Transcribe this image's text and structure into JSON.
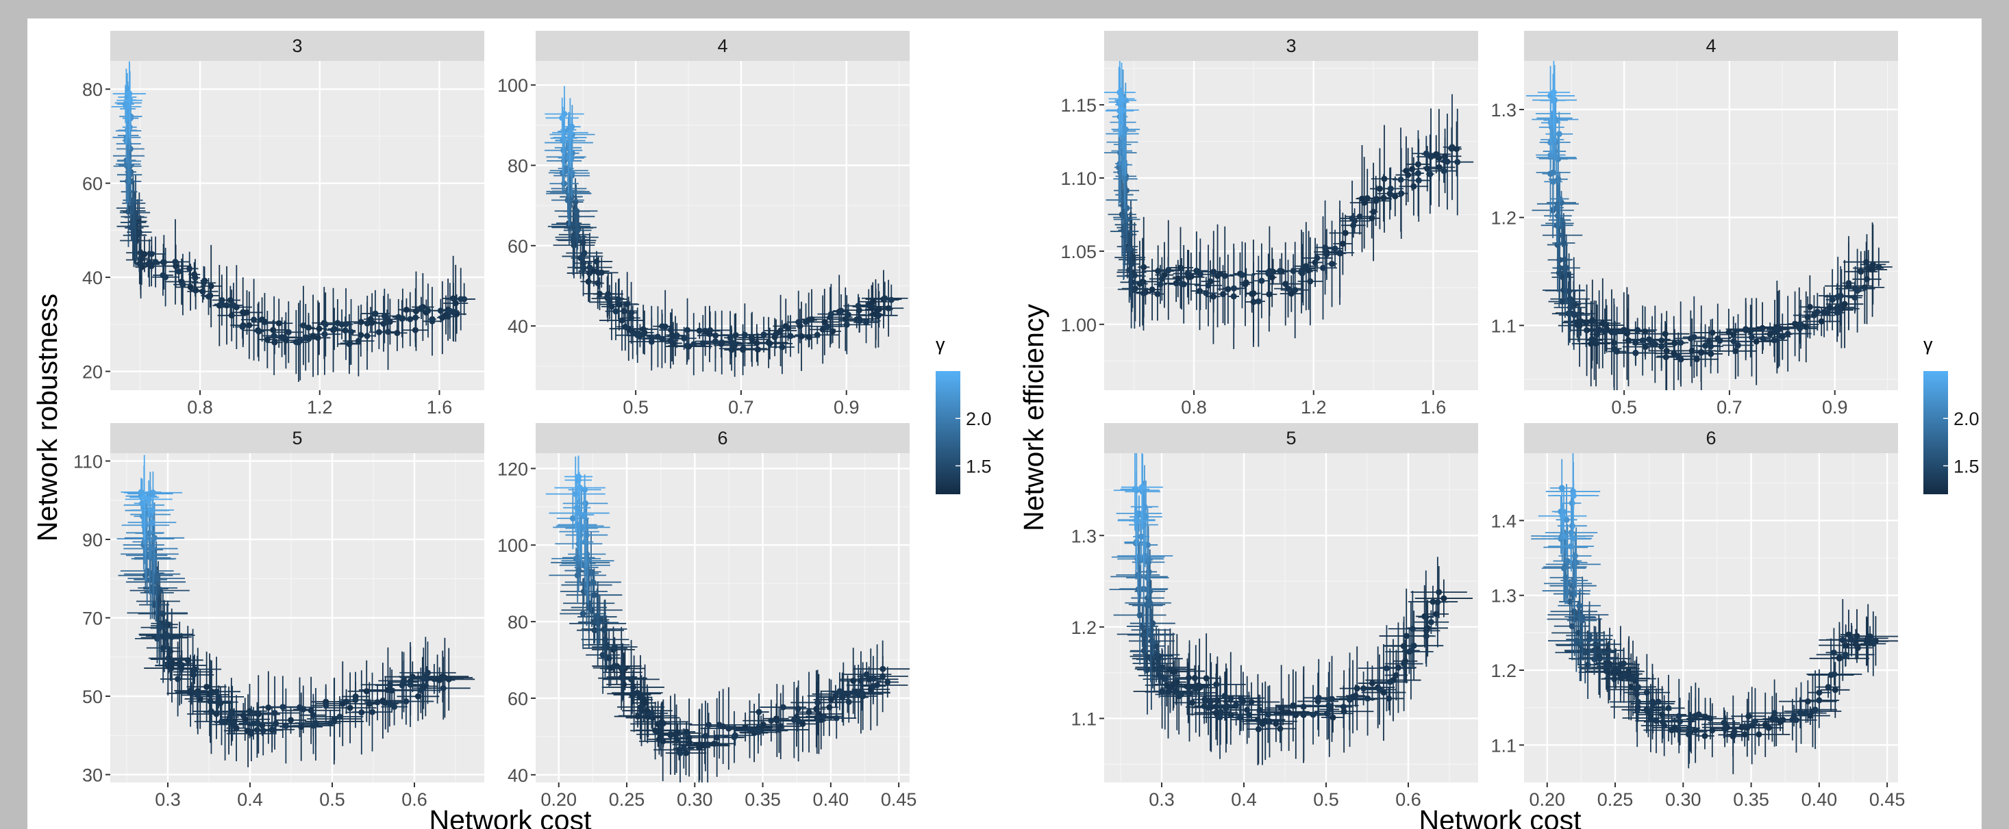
{
  "figure": {
    "left_panel": {
      "ylabel": "Network robustness",
      "xlabel": "Network cost"
    },
    "right_panel": {
      "ylabel": "Network efficiency",
      "xlabel": "Network cost"
    },
    "legend": {
      "title": "γ",
      "ticks": [
        "1.5",
        "2.0"
      ],
      "range": [
        1.2,
        2.5
      ],
      "low_color": "#132B43",
      "high_color": "#56B1F7"
    }
  },
  "chart_data": [
    {
      "type": "scatter",
      "facet": "3",
      "panel": "left",
      "xlabel": "Network cost",
      "ylabel": "Network robustness",
      "xlim": [
        0.5,
        1.75
      ],
      "ylim": [
        16,
        86
      ],
      "xticks": [
        0.8,
        1.2,
        1.6
      ],
      "yticks": [
        20,
        40,
        60,
        80
      ],
      "grid": true,
      "curve": [
        [
          0.56,
          80,
          2.4
        ],
        [
          0.56,
          72,
          2.2
        ],
        [
          0.56,
          64,
          1.9
        ],
        [
          0.57,
          56,
          1.6
        ],
        [
          0.58,
          50,
          1.4
        ],
        [
          0.6,
          43,
          1.3
        ],
        [
          0.7,
          42,
          1.3
        ],
        [
          0.8,
          39,
          1.3
        ],
        [
          0.9,
          33,
          1.3
        ],
        [
          1.0,
          29,
          1.3
        ],
        [
          1.1,
          28,
          1.3
        ],
        [
          1.2,
          28,
          1.3
        ],
        [
          1.3,
          28,
          1.3
        ],
        [
          1.4,
          30,
          1.3
        ],
        [
          1.5,
          31,
          1.3
        ],
        [
          1.6,
          33,
          1.3
        ],
        [
          1.68,
          34,
          1.3
        ]
      ],
      "spread": [
        0.012,
        2.5
      ]
    },
    {
      "type": "scatter",
      "facet": "4",
      "panel": "left",
      "xlabel": "Network cost",
      "ylabel": "Network robustness",
      "xlim": [
        0.31,
        1.02
      ],
      "ylim": [
        24,
        106
      ],
      "xticks": [
        0.5,
        0.7,
        0.9
      ],
      "yticks": [
        40,
        60,
        80,
        100
      ],
      "grid": true,
      "curve": [
        [
          0.37,
          92,
          2.4
        ],
        [
          0.37,
          84,
          2.2
        ],
        [
          0.37,
          76,
          1.9
        ],
        [
          0.38,
          68,
          1.6
        ],
        [
          0.39,
          60,
          1.4
        ],
        [
          0.42,
          53,
          1.3
        ],
        [
          0.47,
          44,
          1.3
        ],
        [
          0.52,
          39,
          1.3
        ],
        [
          0.58,
          37,
          1.3
        ],
        [
          0.65,
          37,
          1.3
        ],
        [
          0.72,
          36,
          1.3
        ],
        [
          0.8,
          38,
          1.3
        ],
        [
          0.87,
          41,
          1.3
        ],
        [
          0.93,
          43,
          1.3
        ],
        [
          0.98,
          45,
          1.3
        ]
      ],
      "spread": [
        0.01,
        2.5
      ]
    },
    {
      "type": "scatter",
      "facet": "5",
      "panel": "left",
      "xlabel": "Network cost",
      "ylabel": "Network robustness",
      "xlim": [
        0.23,
        0.685
      ],
      "ylim": [
        28,
        112
      ],
      "xticks": [
        0.3,
        0.4,
        0.5,
        0.6
      ],
      "yticks": [
        30,
        50,
        70,
        90,
        110
      ],
      "grid": true,
      "curve": [
        [
          0.275,
          103,
          2.4
        ],
        [
          0.275,
          95,
          2.2
        ],
        [
          0.278,
          86,
          1.9
        ],
        [
          0.282,
          78,
          1.6
        ],
        [
          0.29,
          68,
          1.4
        ],
        [
          0.305,
          60,
          1.3
        ],
        [
          0.33,
          54,
          1.3
        ],
        [
          0.36,
          48,
          1.3
        ],
        [
          0.38,
          43,
          1.3
        ],
        [
          0.42,
          44,
          1.3
        ],
        [
          0.47,
          45,
          1.3
        ],
        [
          0.52,
          47,
          1.3
        ],
        [
          0.57,
          50,
          1.3
        ],
        [
          0.61,
          53,
          1.3
        ],
        [
          0.64,
          55,
          1.3
        ]
      ],
      "spread": [
        0.008,
        3
      ]
    },
    {
      "type": "scatter",
      "facet": "6",
      "panel": "left",
      "xlabel": "Network cost",
      "ylabel": "Network robustness",
      "xlim": [
        0.183,
        0.458
      ],
      "ylim": [
        38,
        124
      ],
      "xticks": [
        0.2,
        0.25,
        0.3,
        0.35,
        0.4,
        0.45
      ],
      "yticks": [
        40,
        60,
        80,
        100,
        120
      ],
      "grid": true,
      "curve": [
        [
          0.215,
          115,
          2.4
        ],
        [
          0.215,
          105,
          2.2
        ],
        [
          0.218,
          95,
          1.9
        ],
        [
          0.222,
          85,
          1.6
        ],
        [
          0.232,
          75,
          1.4
        ],
        [
          0.245,
          68,
          1.3
        ],
        [
          0.258,
          60,
          1.3
        ],
        [
          0.27,
          52,
          1.3
        ],
        [
          0.285,
          48,
          1.3
        ],
        [
          0.31,
          50,
          1.3
        ],
        [
          0.34,
          53,
          1.3
        ],
        [
          0.37,
          55,
          1.3
        ],
        [
          0.4,
          57,
          1.3
        ],
        [
          0.42,
          63,
          1.3
        ],
        [
          0.44,
          66,
          1.3
        ]
      ],
      "spread": [
        0.005,
        3
      ]
    },
    {
      "type": "scatter",
      "facet": "3",
      "panel": "right",
      "xlabel": "Network cost",
      "ylabel": "Network efficiency",
      "xlim": [
        0.5,
        1.75
      ],
      "ylim": [
        0.955,
        1.18
      ],
      "xticks": [
        0.8,
        1.2,
        1.6
      ],
      "yticks": [
        1.0,
        1.05,
        1.1,
        1.15
      ],
      "grid": true,
      "curve": [
        [
          0.56,
          1.16,
          2.4
        ],
        [
          0.56,
          1.13,
          2.2
        ],
        [
          0.56,
          1.1,
          1.9
        ],
        [
          0.57,
          1.07,
          1.6
        ],
        [
          0.58,
          1.045,
          1.4
        ],
        [
          0.6,
          1.03,
          1.3
        ],
        [
          0.7,
          1.03,
          1.3
        ],
        [
          0.8,
          1.03,
          1.3
        ],
        [
          0.9,
          1.028,
          1.3
        ],
        [
          1.0,
          1.025,
          1.3
        ],
        [
          1.1,
          1.028,
          1.3
        ],
        [
          1.2,
          1.035,
          1.3
        ],
        [
          1.3,
          1.06,
          1.3
        ],
        [
          1.4,
          1.085,
          1.3
        ],
        [
          1.5,
          1.1,
          1.3
        ],
        [
          1.6,
          1.11,
          1.3
        ],
        [
          1.68,
          1.12,
          1.3
        ]
      ],
      "spread": [
        0.012,
        0.01
      ]
    },
    {
      "type": "scatter",
      "facet": "4",
      "panel": "right",
      "xlabel": "Network cost",
      "ylabel": "Network efficiency",
      "xlim": [
        0.31,
        1.02
      ],
      "ylim": [
        1.04,
        1.345
      ],
      "xticks": [
        0.5,
        0.7,
        0.9
      ],
      "yticks": [
        1.1,
        1.2,
        1.3
      ],
      "grid": true,
      "curve": [
        [
          0.37,
          1.32,
          2.4
        ],
        [
          0.37,
          1.27,
          2.2
        ],
        [
          0.37,
          1.22,
          1.9
        ],
        [
          0.38,
          1.17,
          1.6
        ],
        [
          0.39,
          1.12,
          1.4
        ],
        [
          0.42,
          1.095,
          1.3
        ],
        [
          0.47,
          1.09,
          1.3
        ],
        [
          0.52,
          1.085,
          1.3
        ],
        [
          0.58,
          1.08,
          1.3
        ],
        [
          0.65,
          1.08,
          1.3
        ],
        [
          0.72,
          1.085,
          1.3
        ],
        [
          0.8,
          1.095,
          1.3
        ],
        [
          0.87,
          1.11,
          1.3
        ],
        [
          0.93,
          1.13,
          1.3
        ],
        [
          0.98,
          1.16,
          1.3
        ]
      ],
      "spread": [
        0.01,
        0.012
      ]
    },
    {
      "type": "scatter",
      "facet": "5",
      "panel": "right",
      "xlabel": "Network cost",
      "ylabel": "Network efficiency",
      "xlim": [
        0.23,
        0.685
      ],
      "ylim": [
        1.03,
        1.39
      ],
      "xticks": [
        0.3,
        0.4,
        0.5,
        0.6
      ],
      "yticks": [
        1.1,
        1.2,
        1.3
      ],
      "grid": true,
      "curve": [
        [
          0.275,
          1.35,
          2.4
        ],
        [
          0.275,
          1.3,
          2.2
        ],
        [
          0.278,
          1.25,
          1.9
        ],
        [
          0.282,
          1.2,
          1.6
        ],
        [
          0.29,
          1.16,
          1.4
        ],
        [
          0.305,
          1.14,
          1.3
        ],
        [
          0.33,
          1.135,
          1.3
        ],
        [
          0.36,
          1.125,
          1.3
        ],
        [
          0.38,
          1.11,
          1.3
        ],
        [
          0.42,
          1.102,
          1.3
        ],
        [
          0.47,
          1.105,
          1.3
        ],
        [
          0.52,
          1.115,
          1.3
        ],
        [
          0.57,
          1.13,
          1.3
        ],
        [
          0.61,
          1.19,
          1.3
        ],
        [
          0.64,
          1.23,
          1.3
        ]
      ],
      "spread": [
        0.008,
        0.015
      ]
    },
    {
      "type": "scatter",
      "facet": "6",
      "panel": "right",
      "xlabel": "Network cost",
      "ylabel": "Network efficiency",
      "xlim": [
        0.183,
        0.458
      ],
      "ylim": [
        1.05,
        1.49
      ],
      "xticks": [
        0.2,
        0.25,
        0.3,
        0.35,
        0.4,
        0.45
      ],
      "yticks": [
        1.1,
        1.2,
        1.3,
        1.4
      ],
      "grid": true,
      "curve": [
        [
          0.215,
          1.44,
          2.4
        ],
        [
          0.215,
          1.38,
          2.2
        ],
        [
          0.218,
          1.32,
          1.9
        ],
        [
          0.222,
          1.26,
          1.6
        ],
        [
          0.232,
          1.22,
          1.4
        ],
        [
          0.245,
          1.21,
          1.3
        ],
        [
          0.258,
          1.2,
          1.3
        ],
        [
          0.27,
          1.16,
          1.3
        ],
        [
          0.285,
          1.135,
          1.3
        ],
        [
          0.31,
          1.125,
          1.3
        ],
        [
          0.34,
          1.125,
          1.3
        ],
        [
          0.37,
          1.13,
          1.3
        ],
        [
          0.4,
          1.15,
          1.3
        ],
        [
          0.42,
          1.24,
          1.3
        ],
        [
          0.44,
          1.25,
          1.3
        ]
      ],
      "spread": [
        0.005,
        0.015
      ]
    }
  ]
}
